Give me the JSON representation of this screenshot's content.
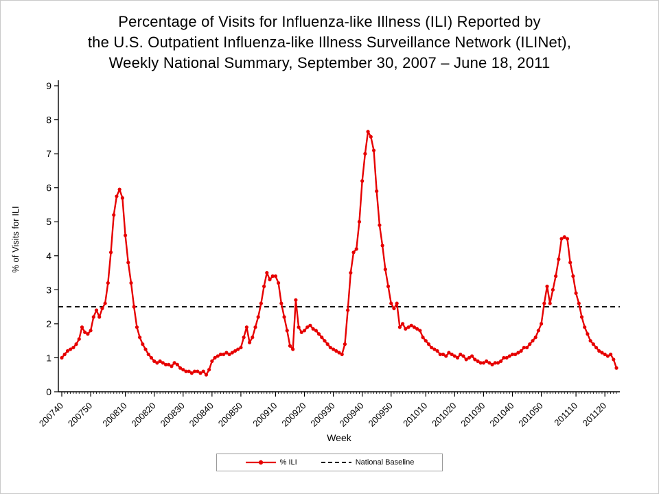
{
  "title": {
    "lines": [
      "Percentage of Visits for Influenza-like Illness (ILI) Reported by",
      "the U.S. Outpatient Influenza-like Illness Surveillance Network (ILINet),",
      "Weekly National Summary, September 30, 2007 – June 18, 2011"
    ]
  },
  "legend": {
    "ili_label": "% ILI",
    "baseline_label": "National Baseline"
  },
  "chart_data": {
    "type": "line",
    "title": "Percentage of Visits for Influenza-like Illness (ILI) Reported by the U.S. Outpatient Influenza-like Illness Surveillance Network (ILINet), Weekly National Summary, September 30, 2007 – June 18, 2011",
    "xlabel": "Week",
    "ylabel": "% of Visits for ILI",
    "ylim": [
      0,
      9
    ],
    "y_ticks": [
      0,
      1,
      2,
      3,
      4,
      5,
      6,
      7,
      8,
      9
    ],
    "grid": false,
    "legend_position": "bottom",
    "x_tick_labels": [
      "200740",
      "200750",
      "200810",
      "200820",
      "200830",
      "200840",
      "200850",
      "200910",
      "200920",
      "200930",
      "200940",
      "200950",
      "201010",
      "201020",
      "201030",
      "201040",
      "201050",
      "201110",
      "201120"
    ],
    "baseline": {
      "label": "National Baseline",
      "value": 2.5,
      "color": "#000000",
      "style": "dashed"
    },
    "series": [
      {
        "name": "% ILI",
        "color": "#e60000",
        "x": [
          "200740",
          "200741",
          "200742",
          "200743",
          "200744",
          "200745",
          "200746",
          "200747",
          "200748",
          "200749",
          "200750",
          "200751",
          "200752",
          "200801",
          "200802",
          "200803",
          "200804",
          "200805",
          "200806",
          "200807",
          "200808",
          "200809",
          "200810",
          "200811",
          "200812",
          "200813",
          "200814",
          "200815",
          "200816",
          "200817",
          "200818",
          "200819",
          "200820",
          "200821",
          "200822",
          "200823",
          "200824",
          "200825",
          "200826",
          "200827",
          "200828",
          "200829",
          "200830",
          "200831",
          "200832",
          "200833",
          "200834",
          "200835",
          "200836",
          "200837",
          "200838",
          "200839",
          "200840",
          "200841",
          "200842",
          "200843",
          "200844",
          "200845",
          "200846",
          "200847",
          "200848",
          "200849",
          "200850",
          "200851",
          "200852",
          "200901",
          "200902",
          "200903",
          "200904",
          "200905",
          "200906",
          "200907",
          "200908",
          "200909",
          "200910",
          "200911",
          "200912",
          "200913",
          "200914",
          "200915",
          "200916",
          "200917",
          "200918",
          "200919",
          "200920",
          "200921",
          "200922",
          "200923",
          "200924",
          "200925",
          "200926",
          "200927",
          "200928",
          "200929",
          "200930",
          "200931",
          "200932",
          "200933",
          "200934",
          "200935",
          "200936",
          "200937",
          "200938",
          "200939",
          "200940",
          "200941",
          "200942",
          "200943",
          "200944",
          "200945",
          "200946",
          "200947",
          "200948",
          "200949",
          "200950",
          "200951",
          "200952",
          "201001",
          "201002",
          "201003",
          "201004",
          "201005",
          "201006",
          "201007",
          "201008",
          "201009",
          "201010",
          "201011",
          "201012",
          "201013",
          "201014",
          "201015",
          "201016",
          "201017",
          "201018",
          "201019",
          "201020",
          "201021",
          "201022",
          "201023",
          "201024",
          "201025",
          "201026",
          "201027",
          "201028",
          "201029",
          "201030",
          "201031",
          "201032",
          "201033",
          "201034",
          "201035",
          "201036",
          "201037",
          "201038",
          "201039",
          "201040",
          "201041",
          "201042",
          "201043",
          "201044",
          "201045",
          "201046",
          "201047",
          "201048",
          "201049",
          "201050",
          "201051",
          "201052",
          "201101",
          "201102",
          "201103",
          "201104",
          "201105",
          "201106",
          "201107",
          "201108",
          "201109",
          "201110",
          "201111",
          "201112",
          "201113",
          "201114",
          "201115",
          "201116",
          "201117",
          "201118",
          "201119",
          "201120",
          "201121",
          "201122",
          "201123",
          "201124"
        ],
        "values": [
          1.0,
          1.1,
          1.2,
          1.25,
          1.3,
          1.4,
          1.55,
          1.9,
          1.75,
          1.7,
          1.8,
          2.2,
          2.4,
          2.2,
          2.45,
          2.6,
          3.2,
          4.1,
          5.2,
          5.75,
          5.95,
          5.7,
          4.6,
          3.8,
          3.2,
          2.5,
          1.9,
          1.6,
          1.4,
          1.25,
          1.1,
          1.0,
          0.9,
          0.85,
          0.9,
          0.85,
          0.8,
          0.8,
          0.75,
          0.85,
          0.8,
          0.7,
          0.65,
          0.6,
          0.6,
          0.55,
          0.6,
          0.6,
          0.55,
          0.6,
          0.5,
          0.65,
          0.9,
          1.0,
          1.05,
          1.1,
          1.1,
          1.15,
          1.1,
          1.15,
          1.2,
          1.25,
          1.3,
          1.6,
          1.9,
          1.45,
          1.6,
          1.9,
          2.2,
          2.6,
          3.1,
          3.5,
          3.3,
          3.4,
          3.4,
          3.2,
          2.6,
          2.2,
          1.8,
          1.35,
          1.25,
          2.7,
          1.9,
          1.75,
          1.8,
          1.9,
          1.95,
          1.85,
          1.8,
          1.7,
          1.6,
          1.5,
          1.4,
          1.3,
          1.25,
          1.2,
          1.15,
          1.1,
          1.4,
          2.4,
          3.5,
          4.1,
          4.2,
          5.0,
          6.2,
          7.0,
          7.65,
          7.5,
          7.1,
          5.9,
          4.9,
          4.3,
          3.6,
          3.1,
          2.6,
          2.45,
          2.6,
          1.9,
          2.0,
          1.85,
          1.9,
          1.95,
          1.9,
          1.85,
          1.8,
          1.6,
          1.5,
          1.4,
          1.3,
          1.25,
          1.2,
          1.1,
          1.1,
          1.05,
          1.15,
          1.1,
          1.05,
          1.0,
          1.1,
          1.05,
          0.95,
          1.0,
          1.05,
          0.95,
          0.9,
          0.85,
          0.85,
          0.9,
          0.85,
          0.8,
          0.85,
          0.85,
          0.9,
          1.0,
          1.0,
          1.05,
          1.1,
          1.1,
          1.15,
          1.2,
          1.3,
          1.3,
          1.4,
          1.5,
          1.6,
          1.8,
          2.0,
          2.6,
          3.1,
          2.6,
          3.0,
          3.4,
          3.9,
          4.5,
          4.55,
          4.5,
          3.8,
          3.4,
          2.9,
          2.6,
          2.2,
          1.9,
          1.7,
          1.5,
          1.4,
          1.3,
          1.2,
          1.15,
          1.1,
          1.05,
          1.1,
          0.95,
          0.7
        ]
      }
    ]
  }
}
